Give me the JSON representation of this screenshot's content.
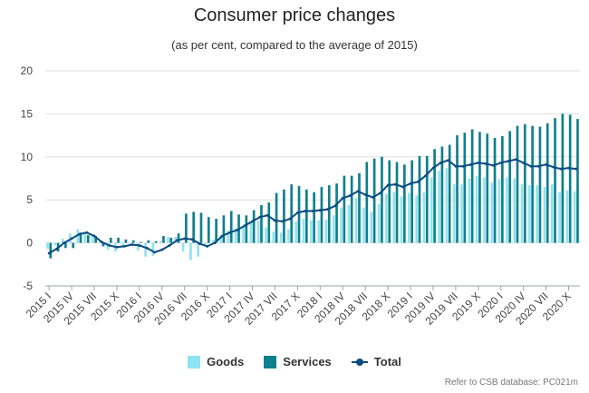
{
  "chart_data": {
    "type": "bar",
    "title": "Consumer price changes",
    "subtitle": "(as per cent, compared to the average of 2015)",
    "xlabel": "",
    "ylabel": "",
    "ylim": [
      -5,
      20
    ],
    "yticks": [
      -5,
      0,
      5,
      10,
      15,
      20
    ],
    "grid": true,
    "legend_position": "bottom",
    "x_tick_labels": [
      "2015 I",
      "2015 IV",
      "2015 VII",
      "2015 X",
      "2016 I",
      "2016 IV",
      "2016 VII",
      "2016 X",
      "2017 I",
      "2017 IV",
      "2017 VII",
      "2017 X",
      "2018 I",
      "2018 IV",
      "2018 VII",
      "2018 X",
      "2019 I",
      "2019 IV",
      "2019 VII",
      "2019 X",
      "2020 I",
      "2020 IV",
      "2020 VII",
      "2020 X"
    ],
    "categories": [
      "2015 I",
      "2015 II",
      "2015 III",
      "2015 IV",
      "2015 V",
      "2015 VI",
      "2015 VII",
      "2015 VIII",
      "2015 IX",
      "2015 X",
      "2015 XI",
      "2015 XII",
      "2016 I",
      "2016 II",
      "2016 III",
      "2016 IV",
      "2016 V",
      "2016 VI",
      "2016 VII",
      "2016 VIII",
      "2016 IX",
      "2016 X",
      "2016 XI",
      "2016 XII",
      "2017 I",
      "2017 II",
      "2017 III",
      "2017 IV",
      "2017 V",
      "2017 VI",
      "2017 VII",
      "2017 VIII",
      "2017 IX",
      "2017 X",
      "2017 XI",
      "2017 XII",
      "2018 I",
      "2018 II",
      "2018 III",
      "2018 IV",
      "2018 V",
      "2018 VI",
      "2018 VII",
      "2018 VIII",
      "2018 IX",
      "2018 X",
      "2018 XI",
      "2018 XII",
      "2019 I",
      "2019 II",
      "2019 III",
      "2019 IV",
      "2019 V",
      "2019 VI",
      "2019 VII",
      "2019 VIII",
      "2019 IX",
      "2019 X",
      "2019 XI",
      "2019 XII",
      "2020 I",
      "2020 II",
      "2020 III",
      "2020 IV",
      "2020 V",
      "2020 VI",
      "2020 VII",
      "2020 VIII",
      "2020 IX",
      "2020 X",
      "2020 XI"
    ],
    "series": [
      {
        "name": "Goods",
        "type": "bar",
        "color": "#8fe3f2",
        "values": [
          -0.7,
          -0.3,
          0.5,
          1.1,
          1.6,
          1.3,
          1.0,
          0.2,
          -0.8,
          -1.0,
          -0.4,
          -0.1,
          -0.9,
          -1.6,
          -1.5,
          0.2,
          0.7,
          0.7,
          -1.0,
          -2.0,
          -1.6,
          -0.2,
          0.4,
          0.9,
          1.4,
          1.7,
          1.9,
          2.4,
          2.6,
          1.8,
          1.3,
          1.2,
          1.6,
          2.5,
          2.8,
          2.6,
          2.6,
          2.7,
          3.2,
          4.1,
          4.4,
          5.2,
          4.1,
          3.6,
          4.5,
          5.7,
          5.9,
          5.4,
          5.8,
          5.5,
          5.9,
          7.6,
          8.4,
          8.7,
          6.8,
          6.8,
          7.5,
          7.8,
          7.6,
          7.0,
          7.4,
          7.6,
          7.5,
          6.8,
          6.7,
          6.7,
          6.5,
          6.8,
          5.9,
          6.1,
          6.0
        ]
      },
      {
        "name": "Services",
        "type": "bar",
        "color": "#0e7f8d",
        "values": [
          -1.8,
          -1.0,
          -0.6,
          -0.6,
          1.2,
          0.9,
          0.8,
          -0.4,
          0.6,
          0.6,
          0.4,
          0.3,
          0.1,
          0.3,
          0.2,
          0.8,
          0.6,
          1.1,
          3.4,
          3.6,
          3.5,
          3.0,
          2.8,
          3.2,
          3.7,
          3.3,
          3.2,
          3.8,
          4.4,
          4.7,
          5.8,
          6.2,
          6.8,
          6.6,
          6.2,
          5.9,
          6.5,
          6.7,
          6.9,
          7.8,
          7.8,
          8.1,
          9.4,
          9.8,
          10.0,
          9.6,
          9.4,
          9.1,
          9.6,
          10.1,
          10.1,
          10.9,
          11.2,
          11.4,
          12.5,
          12.8,
          13.2,
          12.9,
          12.7,
          12.2,
          12.4,
          13.0,
          13.6,
          13.8,
          13.6,
          13.5,
          13.9,
          14.5,
          15.0,
          14.9,
          14.4
        ]
      },
      {
        "name": "Total",
        "type": "line",
        "color": "#0b4a82",
        "values": [
          -1.2,
          -0.7,
          0.0,
          0.5,
          1.0,
          1.2,
          0.8,
          0.1,
          -0.3,
          -0.5,
          -0.4,
          -0.2,
          -0.3,
          -0.6,
          -1.1,
          -0.8,
          -0.3,
          0.3,
          0.5,
          0.4,
          -0.1,
          -0.4,
          0.0,
          0.8,
          1.2,
          1.5,
          2.0,
          2.5,
          3.0,
          3.2,
          2.6,
          2.5,
          2.8,
          3.5,
          3.7,
          3.7,
          3.8,
          3.9,
          4.3,
          5.2,
          5.5,
          6.0,
          5.6,
          5.3,
          5.8,
          6.7,
          6.8,
          6.5,
          6.9,
          7.1,
          7.8,
          8.7,
          9.3,
          9.6,
          8.9,
          8.9,
          9.1,
          9.3,
          9.2,
          9.0,
          9.3,
          9.5,
          9.7,
          9.3,
          8.9,
          8.9,
          9.1,
          8.8,
          8.6,
          8.7,
          8.6
        ]
      }
    ],
    "credit": "Refer to CSB database: PC021m"
  },
  "legend": {
    "goods": "Goods",
    "services": "Services",
    "total": "Total"
  }
}
